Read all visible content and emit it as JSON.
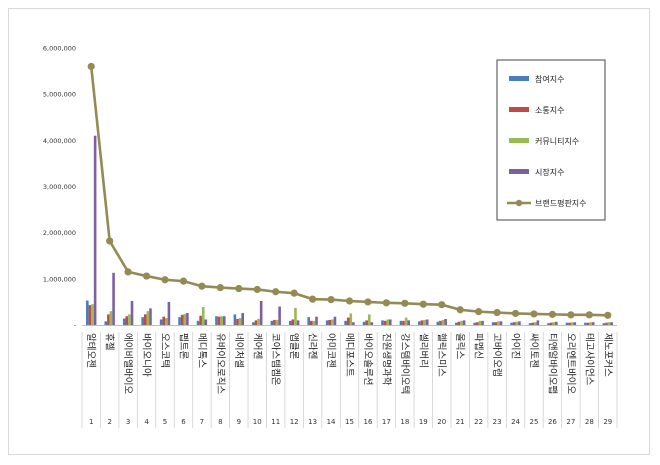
{
  "chart_data": {
    "type": "bar",
    "title": "",
    "xlabel": "",
    "ylabel": "",
    "ylim": [
      0,
      6000000
    ],
    "yticks": [
      "6,000,000",
      "5,000,000",
      "4,000,000",
      "3,000,000",
      "2,000,000",
      "1,000,000",
      "-"
    ],
    "ytick_values": [
      6000000,
      5000000,
      4000000,
      3000000,
      2000000,
      1000000,
      0
    ],
    "grid": false,
    "legend_position": "top-right",
    "ranks": [
      "1",
      "2",
      "3",
      "4",
      "5",
      "6",
      "7",
      "8",
      "9",
      "10",
      "11",
      "12",
      "13",
      "14",
      "15",
      "16",
      "17",
      "18",
      "19",
      "20",
      "21",
      "22",
      "23",
      "24",
      "25",
      "26",
      "27",
      "28",
      "29"
    ],
    "categories": [
      "알테오젠",
      "휴젤",
      "에이비엘바이오",
      "바이오니아",
      "오스코텍",
      "펩트론",
      "메디톡스",
      "유바이오로직스",
      "네이처셀",
      "케어젠",
      "코아스템켐온",
      "앱클론",
      "신라젠",
      "아미코젠",
      "메디포스트",
      "바이오솔루션",
      "진원생명과학",
      "강스템바이오텍",
      "셀리버리",
      "헬릭스미스",
      "올릭스",
      "파멥신",
      "고바이오랩",
      "아이진",
      "싸이토젠",
      "티앤알바이오팹",
      "오리엔트바이오",
      "테고사이언스",
      "제노포커스"
    ],
    "series": [
      {
        "name": "참여지수",
        "color": "#4a7ebb",
        "values": [
          530000,
          80000,
          140000,
          170000,
          120000,
          170000,
          90000,
          190000,
          230000,
          60000,
          90000,
          90000,
          170000,
          100000,
          90000,
          70000,
          100000,
          90000,
          80000,
          70000,
          50000,
          50000,
          60000,
          50000,
          40000,
          40000,
          50000,
          50000,
          40000
        ]
      },
      {
        "name": "소통지수",
        "color": "#be4b48",
        "values": [
          430000,
          230000,
          190000,
          230000,
          180000,
          220000,
          200000,
          180000,
          130000,
          100000,
          110000,
          120000,
          90000,
          110000,
          160000,
          100000,
          90000,
          90000,
          100000,
          90000,
          70000,
          60000,
          60000,
          60000,
          50000,
          50000,
          50000,
          50000,
          50000
        ]
      },
      {
        "name": "커뮤니티지수",
        "color": "#98b954",
        "values": [
          450000,
          300000,
          230000,
          300000,
          150000,
          240000,
          390000,
          190000,
          150000,
          130000,
          110000,
          370000,
          90000,
          120000,
          250000,
          230000,
          120000,
          160000,
          110000,
          110000,
          90000,
          90000,
          80000,
          70000,
          60000,
          60000,
          60000,
          60000,
          60000
        ]
      },
      {
        "name": "시장지수",
        "color": "#7d60a0",
        "values": [
          4100000,
          1130000,
          520000,
          360000,
          500000,
          260000,
          120000,
          190000,
          260000,
          520000,
          400000,
          100000,
          180000,
          180000,
          60000,
          60000,
          120000,
          100000,
          120000,
          130000,
          100000,
          90000,
          80000,
          80000,
          100000,
          70000,
          60000,
          60000,
          60000
        ]
      },
      {
        "name": "브랜드평판지수",
        "color": "#948a54",
        "values": [
          5600000,
          1820000,
          1150000,
          1060000,
          980000,
          950000,
          840000,
          810000,
          790000,
          770000,
          720000,
          690000,
          560000,
          550000,
          520000,
          500000,
          480000,
          470000,
          450000,
          440000,
          330000,
          290000,
          270000,
          250000,
          240000,
          230000,
          220000,
          220000,
          210000
        ]
      }
    ]
  }
}
